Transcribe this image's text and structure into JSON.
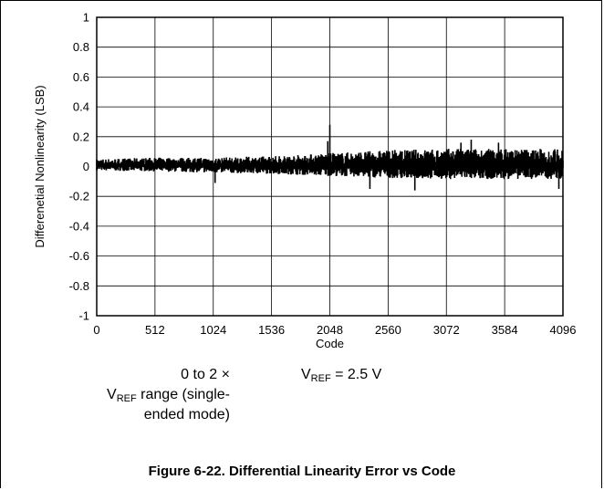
{
  "caption": "Figure 6-22. Differential Linearity Error vs Code",
  "conditions": {
    "range_line1": "0 to 2 ×",
    "range_vref": "V",
    "range_vref_sub": "REF",
    "range_line2_rest": " range (single-",
    "range_line3": "ended mode)",
    "vref_v": "V",
    "vref_sub": "REF",
    "vref_rest": " = 2.5 V"
  },
  "chart_data": {
    "type": "line",
    "title": "",
    "xlabel": "Code",
    "ylabel": "Differenetial Nonlinearity (LSB)",
    "xlim": [
      0,
      4096
    ],
    "ylim": [
      -1,
      1
    ],
    "grid": true,
    "x_ticks": [
      0,
      512,
      1024,
      1536,
      2048,
      2560,
      3072,
      3584,
      4096
    ],
    "x_tick_labels": [
      "0",
      "512",
      "1024",
      "1536",
      "2048",
      "2560",
      "3072",
      "3584",
      "4096"
    ],
    "y_ticks": [
      1,
      0.8,
      0.6,
      0.4,
      0.2,
      0,
      -0.2,
      -0.4,
      -0.6,
      -0.8,
      -1
    ],
    "y_tick_labels": [
      "1",
      "0.8",
      "0.6",
      "0.4",
      "0.2",
      "0",
      "-0.2",
      "-0.4",
      "-0.6",
      "-0.8",
      "-1"
    ],
    "series": [
      {
        "color": "#000000",
        "envelope_x": [
          0,
          512,
          1024,
          1536,
          2048,
          2560,
          3072,
          3584,
          4096
        ],
        "envelope_upper": [
          0.05,
          0.06,
          0.06,
          0.07,
          0.09,
          0.11,
          0.12,
          0.12,
          0.12
        ],
        "envelope_lower": [
          -0.04,
          -0.05,
          -0.06,
          -0.07,
          -0.09,
          -0.11,
          -0.12,
          -0.12,
          -0.12
        ],
        "spikes": [
          {
            "x": 2048,
            "y": 0.28
          },
          {
            "x": 2030,
            "y": 0.17
          },
          {
            "x": 3290,
            "y": 0.18
          },
          {
            "x": 3200,
            "y": 0.16
          },
          {
            "x": 3530,
            "y": 0.16
          },
          {
            "x": 2795,
            "y": -0.16
          },
          {
            "x": 2400,
            "y": -0.15
          },
          {
            "x": 4060,
            "y": -0.15
          },
          {
            "x": 1040,
            "y": -0.11
          }
        ]
      }
    ]
  }
}
